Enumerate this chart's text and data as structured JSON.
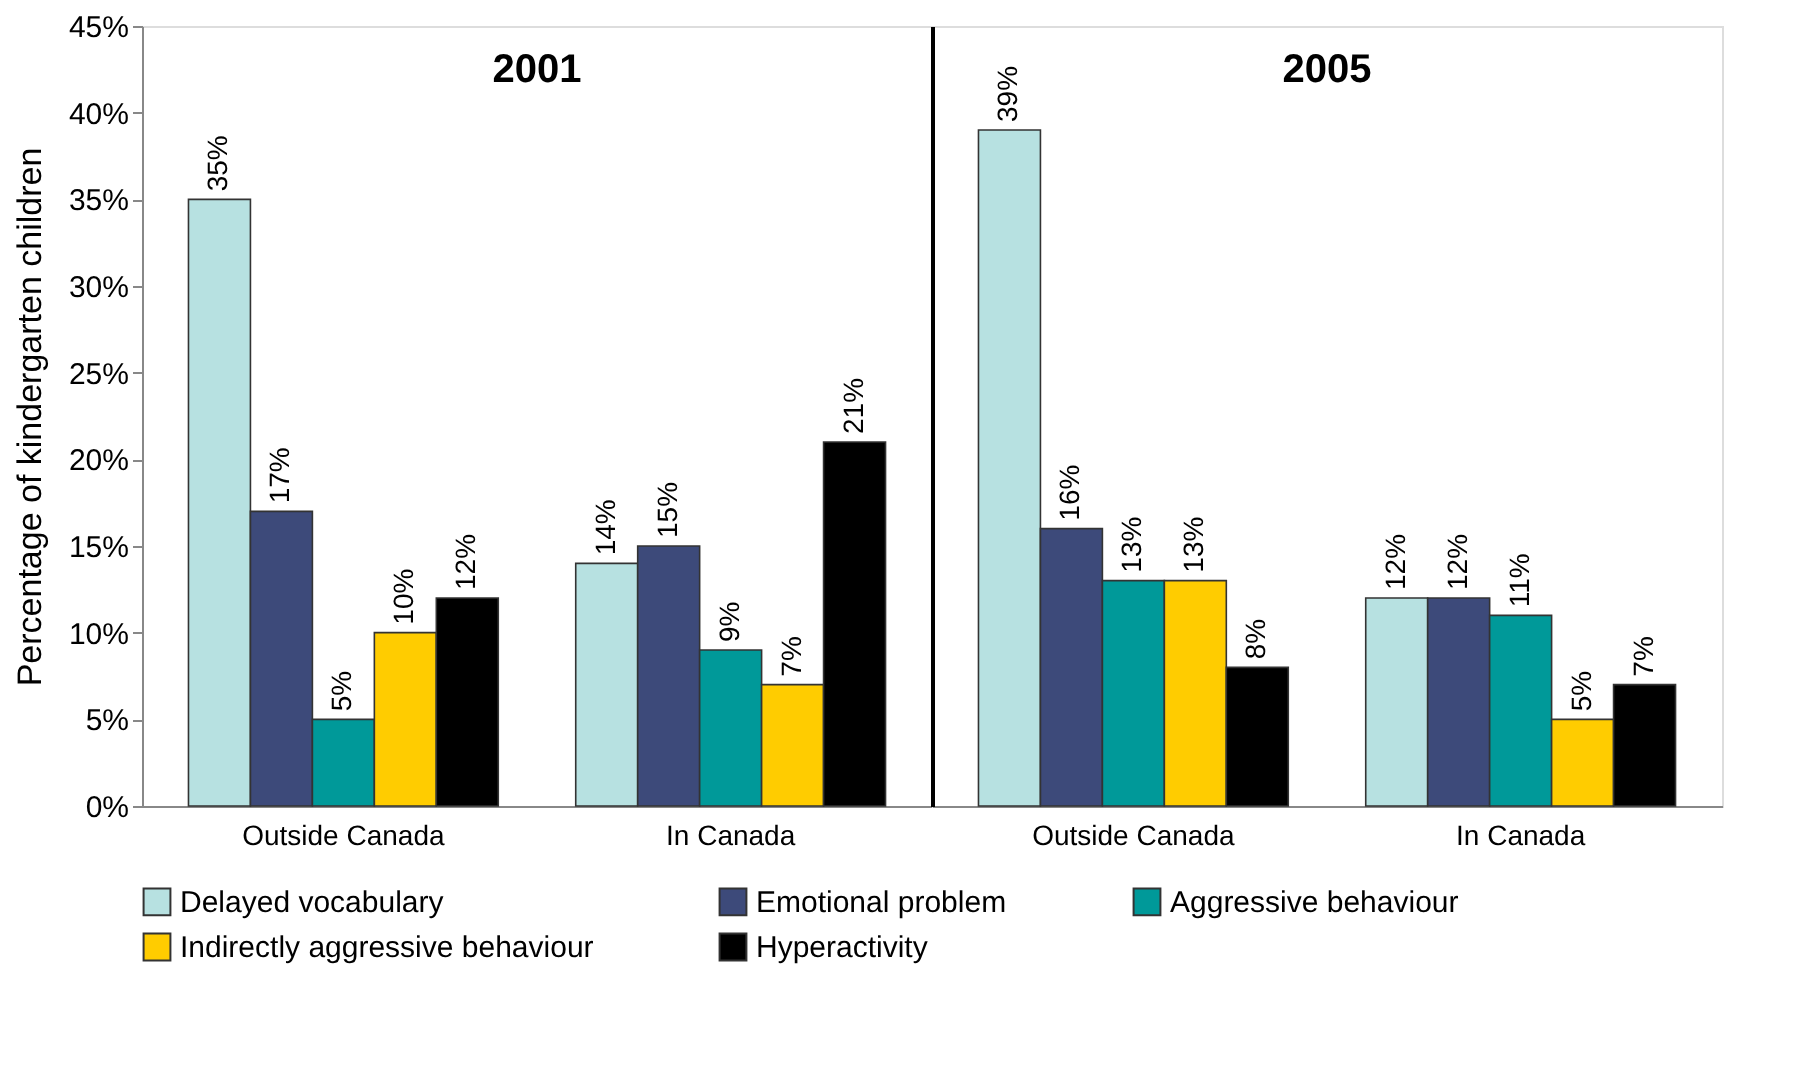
{
  "chart_data": [
    {
      "type": "bar",
      "title": "2001",
      "ylabel": "Percentage of kindergarten children",
      "categories": [
        "Outside Canada",
        "In Canada"
      ],
      "ylim": [
        0,
        45
      ],
      "yticks": [
        {
          "value": 0,
          "label": "0%"
        },
        {
          "value": 5,
          "label": "5%"
        },
        {
          "value": 10,
          "label": "10%"
        },
        {
          "value": 15,
          "label": "15%"
        },
        {
          "value": 20,
          "label": "20%"
        },
        {
          "value": 25,
          "label": "25%"
        },
        {
          "value": 30,
          "label": "30%"
        },
        {
          "value": 35,
          "label": "35%"
        },
        {
          "value": 40,
          "label": "40%"
        },
        {
          "value": 45,
          "label": "45%"
        }
      ],
      "legend": "bottom",
      "grid": false,
      "series": [
        {
          "name": "Delayed vocabulary",
          "color": "#b7e1e1",
          "values": [
            35,
            14
          ],
          "value_labels": [
            "35%",
            "14%"
          ]
        },
        {
          "name": "Emotional problem",
          "color": "#3d4a7a",
          "values": [
            17,
            15
          ],
          "value_labels": [
            "17%",
            "15%"
          ]
        },
        {
          "name": "Aggressive behaviour",
          "color": "#009999",
          "values": [
            5,
            9
          ],
          "value_labels": [
            "5%",
            "9%"
          ]
        },
        {
          "name": "Indirectly aggressive behaviour",
          "color": "#ffcc00",
          "values": [
            10,
            7
          ],
          "value_labels": [
            "10%",
            "7%"
          ]
        },
        {
          "name": "Hyperactivity",
          "color": "#000000",
          "values": [
            12,
            21
          ],
          "value_labels": [
            "12%",
            "21%"
          ]
        }
      ]
    },
    {
      "type": "bar",
      "title": "2005",
      "categories": [
        "Outside Canada",
        "In Canada"
      ],
      "ylim": [
        0,
        45
      ],
      "tick_labels": "x",
      "grid": false,
      "series": [
        {
          "color": "#b7e1e1",
          "values": [
            39,
            12
          ],
          "value_labels": [
            "39%",
            "12%"
          ]
        },
        {
          "color": "#3d4a7a",
          "values": [
            16,
            12
          ],
          "value_labels": [
            "16%",
            "12%"
          ]
        },
        {
          "color": "#009999",
          "values": [
            13,
            11
          ],
          "value_labels": [
            "13%",
            "11%"
          ]
        },
        {
          "color": "#ffcc00",
          "values": [
            13,
            5
          ],
          "value_labels": [
            "13%",
            "5%"
          ]
        },
        {
          "color": "#000000",
          "values": [
            8,
            7
          ],
          "value_labels": [
            "8%",
            "7%"
          ]
        }
      ]
    }
  ]
}
